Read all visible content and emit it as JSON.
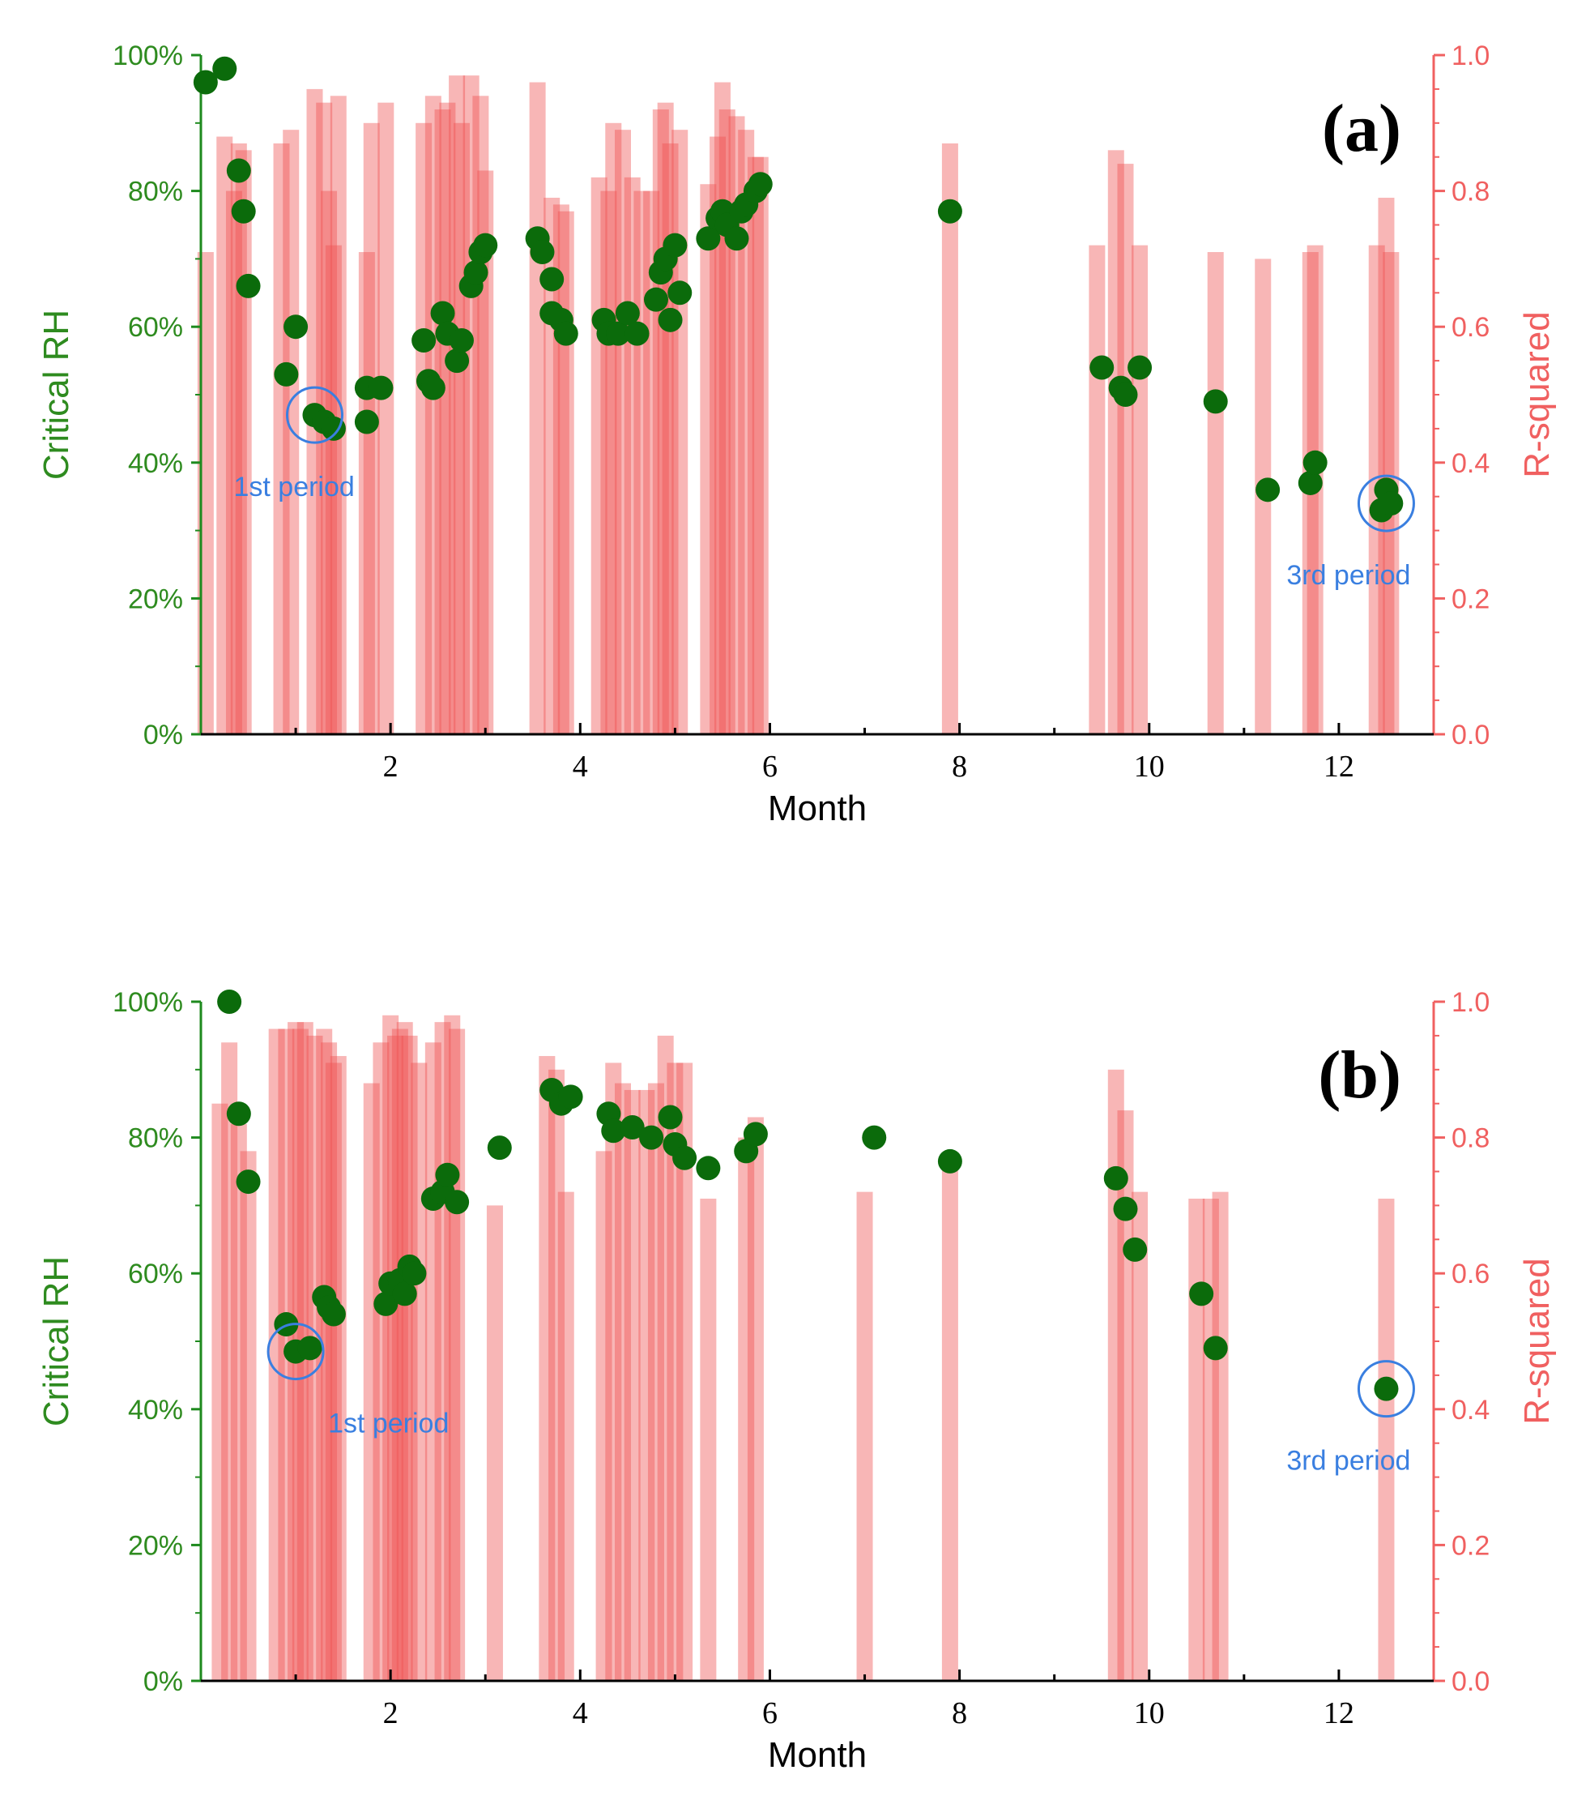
{
  "colors": {
    "left_axis": "#1e8a1e",
    "right_axis": "#f06060",
    "bar": "#ee5050",
    "point": "#0b6b0b",
    "annotation": "#3a7fe0"
  },
  "chart_data": [
    {
      "type": "bar+scatter",
      "panel_label": "(a)",
      "xlabel": "Month",
      "ylabel_left": "Critical RH",
      "ylabel_right": "R-squared",
      "xlim": [
        0,
        13
      ],
      "ylim_left": [
        0,
        100
      ],
      "ylim_right": [
        0,
        1
      ],
      "xticks": [
        "2",
        "4",
        "6",
        "8",
        "10",
        "12"
      ],
      "yticks_left": [
        "0%",
        "20%",
        "40%",
        "60%",
        "80%",
        "100%"
      ],
      "yticks_right": [
        "0.0",
        "0.2",
        "0.4",
        "0.6",
        "0.8",
        "1.0"
      ],
      "annotations": [
        {
          "text": "1st period",
          "x": 1.2,
          "y": 47
        },
        {
          "text": "3rd period",
          "x": 12.5,
          "y": 34
        }
      ],
      "bars_r2": [
        [
          0.05,
          0.71
        ],
        [
          0.25,
          0.88
        ],
        [
          0.35,
          0.8
        ],
        [
          0.4,
          0.87
        ],
        [
          0.45,
          0.86
        ],
        [
          0.85,
          0.87
        ],
        [
          0.95,
          0.89
        ],
        [
          1.2,
          0.95
        ],
        [
          1.3,
          0.93
        ],
        [
          1.35,
          0.8
        ],
        [
          1.4,
          0.72
        ],
        [
          1.45,
          0.94
        ],
        [
          1.75,
          0.71
        ],
        [
          1.8,
          0.9
        ],
        [
          1.95,
          0.93
        ],
        [
          2.35,
          0.9
        ],
        [
          2.45,
          0.94
        ],
        [
          2.55,
          0.92
        ],
        [
          2.6,
          0.93
        ],
        [
          2.7,
          0.97
        ],
        [
          2.75,
          0.9
        ],
        [
          2.85,
          0.97
        ],
        [
          2.95,
          0.94
        ],
        [
          3.0,
          0.83
        ],
        [
          3.55,
          0.96
        ],
        [
          3.7,
          0.79
        ],
        [
          3.8,
          0.78
        ],
        [
          3.85,
          0.77
        ],
        [
          4.2,
          0.82
        ],
        [
          4.3,
          0.8
        ],
        [
          4.35,
          0.9
        ],
        [
          4.45,
          0.89
        ],
        [
          4.55,
          0.82
        ],
        [
          4.65,
          0.8
        ],
        [
          4.75,
          0.8
        ],
        [
          4.85,
          0.92
        ],
        [
          4.9,
          0.93
        ],
        [
          4.95,
          0.87
        ],
        [
          5.05,
          0.89
        ],
        [
          5.35,
          0.81
        ],
        [
          5.45,
          0.88
        ],
        [
          5.5,
          0.96
        ],
        [
          5.55,
          0.92
        ],
        [
          5.65,
          0.91
        ],
        [
          5.75,
          0.89
        ],
        [
          5.85,
          0.85
        ],
        [
          5.9,
          0.85
        ],
        [
          7.9,
          0.87
        ],
        [
          9.45,
          0.72
        ],
        [
          9.65,
          0.86
        ],
        [
          9.75,
          0.84
        ],
        [
          9.9,
          0.72
        ],
        [
          10.7,
          0.71
        ],
        [
          11.2,
          0.7
        ],
        [
          11.7,
          0.71
        ],
        [
          11.75,
          0.72
        ],
        [
          12.4,
          0.72
        ],
        [
          12.5,
          0.79
        ],
        [
          12.55,
          0.71
        ]
      ],
      "points_rh": [
        [
          0.05,
          96
        ],
        [
          0.25,
          98
        ],
        [
          0.4,
          83
        ],
        [
          0.45,
          77
        ],
        [
          0.5,
          66
        ],
        [
          0.9,
          53
        ],
        [
          1.0,
          60
        ],
        [
          1.2,
          47
        ],
        [
          1.3,
          46
        ],
        [
          1.4,
          45
        ],
        [
          1.75,
          51
        ],
        [
          1.75,
          46
        ],
        [
          1.9,
          51
        ],
        [
          2.35,
          58
        ],
        [
          2.4,
          52
        ],
        [
          2.45,
          51
        ],
        [
          2.55,
          62
        ],
        [
          2.6,
          59
        ],
        [
          2.7,
          55
        ],
        [
          2.75,
          58
        ],
        [
          2.85,
          66
        ],
        [
          2.9,
          68
        ],
        [
          2.95,
          71
        ],
        [
          3.0,
          72
        ],
        [
          3.55,
          73
        ],
        [
          3.6,
          71
        ],
        [
          3.7,
          67
        ],
        [
          3.7,
          62
        ],
        [
          3.8,
          61
        ],
        [
          3.85,
          59
        ],
        [
          4.25,
          61
        ],
        [
          4.3,
          59
        ],
        [
          4.4,
          59
        ],
        [
          4.5,
          62
        ],
        [
          4.6,
          59
        ],
        [
          4.8,
          64
        ],
        [
          4.85,
          68
        ],
        [
          4.9,
          70
        ],
        [
          4.95,
          61
        ],
        [
          5.0,
          72
        ],
        [
          5.05,
          65
        ],
        [
          5.35,
          73
        ],
        [
          5.45,
          76
        ],
        [
          5.5,
          77
        ],
        [
          5.55,
          75
        ],
        [
          5.65,
          73
        ],
        [
          5.7,
          77
        ],
        [
          5.75,
          78
        ],
        [
          5.85,
          80
        ],
        [
          5.9,
          81
        ],
        [
          7.9,
          77
        ],
        [
          9.5,
          54
        ],
        [
          9.7,
          51
        ],
        [
          9.75,
          50
        ],
        [
          9.9,
          54
        ],
        [
          10.7,
          49
        ],
        [
          11.25,
          36
        ],
        [
          11.7,
          37
        ],
        [
          11.75,
          40
        ],
        [
          12.45,
          33
        ],
        [
          12.5,
          36
        ],
        [
          12.55,
          34
        ]
      ]
    },
    {
      "type": "bar+scatter",
      "panel_label": "(b)",
      "xlabel": "Month",
      "ylabel_left": "Critical RH",
      "ylabel_right": "R-squared",
      "xlim": [
        0,
        13
      ],
      "ylim_left": [
        0,
        100
      ],
      "ylim_right": [
        0,
        1
      ],
      "xticks": [
        "2",
        "4",
        "6",
        "8",
        "10",
        "12"
      ],
      "yticks_left": [
        "0%",
        "20%",
        "40%",
        "60%",
        "80%",
        "100%"
      ],
      "yticks_right": [
        "0.0",
        "0.2",
        "0.4",
        "0.6",
        "0.8",
        "1.0"
      ],
      "annotations": [
        {
          "text": "1st period",
          "x": 1.0,
          "y": 48.5
        },
        {
          "text": "3rd period",
          "x": 12.5,
          "y": 43
        }
      ],
      "bars_r2": [
        [
          0.2,
          0.85
        ],
        [
          0.3,
          0.94
        ],
        [
          0.4,
          0.82
        ],
        [
          0.5,
          0.78
        ],
        [
          0.8,
          0.96
        ],
        [
          0.9,
          0.96
        ],
        [
          1.0,
          0.97
        ],
        [
          1.05,
          0.96
        ],
        [
          1.1,
          0.97
        ],
        [
          1.2,
          0.95
        ],
        [
          1.3,
          0.96
        ],
        [
          1.35,
          0.94
        ],
        [
          1.4,
          0.91
        ],
        [
          1.45,
          0.92
        ],
        [
          1.8,
          0.88
        ],
        [
          1.9,
          0.94
        ],
        [
          2.0,
          0.98
        ],
        [
          2.05,
          0.95
        ],
        [
          2.1,
          0.96
        ],
        [
          2.15,
          0.97
        ],
        [
          2.2,
          0.95
        ],
        [
          2.3,
          0.91
        ],
        [
          2.45,
          0.94
        ],
        [
          2.55,
          0.97
        ],
        [
          2.65,
          0.98
        ],
        [
          2.7,
          0.96
        ],
        [
          3.1,
          0.7
        ],
        [
          3.65,
          0.92
        ],
        [
          3.75,
          0.9
        ],
        [
          3.85,
          0.72
        ],
        [
          4.25,
          0.78
        ],
        [
          4.35,
          0.91
        ],
        [
          4.45,
          0.88
        ],
        [
          4.55,
          0.87
        ],
        [
          4.7,
          0.87
        ],
        [
          4.8,
          0.88
        ],
        [
          4.9,
          0.95
        ],
        [
          5.0,
          0.91
        ],
        [
          5.1,
          0.91
        ],
        [
          5.35,
          0.71
        ],
        [
          5.75,
          0.8
        ],
        [
          5.85,
          0.83
        ],
        [
          7.0,
          0.72
        ],
        [
          7.9,
          0.77
        ],
        [
          9.65,
          0.9
        ],
        [
          9.75,
          0.84
        ],
        [
          9.9,
          0.72
        ],
        [
          10.5,
          0.71
        ],
        [
          10.65,
          0.71
        ],
        [
          10.75,
          0.72
        ],
        [
          12.5,
          0.71
        ]
      ],
      "points_rh": [
        [
          0.3,
          100
        ],
        [
          0.4,
          83.5
        ],
        [
          0.5,
          73.5
        ],
        [
          0.9,
          52.5
        ],
        [
          1.0,
          48.5
        ],
        [
          1.15,
          49
        ],
        [
          1.3,
          56.5
        ],
        [
          1.35,
          55
        ],
        [
          1.4,
          54
        ],
        [
          1.95,
          55.5
        ],
        [
          2.0,
          58.5
        ],
        [
          2.1,
          59
        ],
        [
          2.15,
          57
        ],
        [
          2.2,
          61
        ],
        [
          2.25,
          60
        ],
        [
          2.45,
          71
        ],
        [
          2.55,
          72
        ],
        [
          2.6,
          74.5
        ],
        [
          2.7,
          70.5
        ],
        [
          3.15,
          78.5
        ],
        [
          3.7,
          87
        ],
        [
          3.8,
          85
        ],
        [
          3.9,
          86
        ],
        [
          4.3,
          83.5
        ],
        [
          4.35,
          81
        ],
        [
          4.55,
          81.5
        ],
        [
          4.75,
          80
        ],
        [
          4.95,
          83
        ],
        [
          5.0,
          79
        ],
        [
          5.1,
          77
        ],
        [
          5.35,
          75.5
        ],
        [
          5.75,
          78
        ],
        [
          5.85,
          80.5
        ],
        [
          7.1,
          80
        ],
        [
          7.9,
          76.5
        ],
        [
          9.65,
          74
        ],
        [
          9.75,
          69.5
        ],
        [
          9.85,
          63.5
        ],
        [
          10.55,
          57
        ],
        [
          10.7,
          49
        ],
        [
          12.5,
          43
        ]
      ]
    }
  ]
}
